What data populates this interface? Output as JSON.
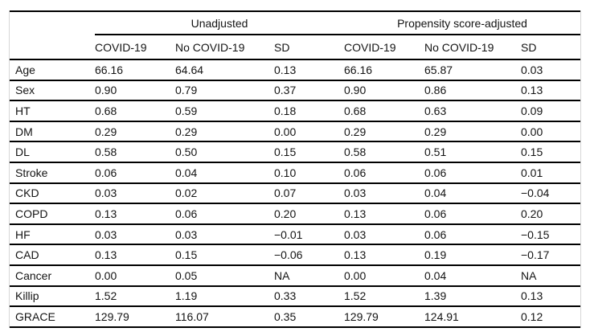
{
  "table": {
    "groups": [
      {
        "label": "Unadjusted"
      },
      {
        "label": "Propensity score-adjusted"
      }
    ],
    "columns": [
      "COVID-19",
      "No COVID-19",
      "SD",
      "COVID-19",
      "No COVID-19",
      "SD"
    ],
    "rows": [
      {
        "label": "Age",
        "values": [
          "66.16",
          "64.64",
          "0.13",
          "66.16",
          "65.87",
          "0.03"
        ]
      },
      {
        "label": "Sex",
        "values": [
          "0.90",
          "0.79",
          "0.37",
          "0.90",
          "0.86",
          "0.13"
        ]
      },
      {
        "label": "HT",
        "values": [
          "0.68",
          "0.59",
          "0.18",
          "0.68",
          "0.63",
          "0.09"
        ]
      },
      {
        "label": "DM",
        "values": [
          "0.29",
          "0.29",
          "0.00",
          "0.29",
          "0.29",
          "0.00"
        ]
      },
      {
        "label": "DL",
        "values": [
          "0.58",
          "0.50",
          "0.15",
          "0.58",
          "0.51",
          "0.15"
        ]
      },
      {
        "label": "Stroke",
        "values": [
          "0.06",
          "0.04",
          "0.10",
          "0.06",
          "0.06",
          "0.01"
        ]
      },
      {
        "label": "CKD",
        "values": [
          "0.03",
          "0.02",
          "0.07",
          "0.03",
          "0.04",
          "−0.04"
        ]
      },
      {
        "label": "COPD",
        "values": [
          "0.13",
          "0.06",
          "0.20",
          "0.13",
          "0.06",
          "0.20"
        ]
      },
      {
        "label": "HF",
        "values": [
          "0.03",
          "0.03",
          "−0.01",
          "0.03",
          "0.06",
          "−0.15"
        ]
      },
      {
        "label": "CAD",
        "values": [
          "0.13",
          "0.15",
          "−0.06",
          "0.13",
          "0.19",
          "−0.17"
        ]
      },
      {
        "label": "Cancer",
        "values": [
          "0.00",
          "0.05",
          "NA",
          "0.00",
          "0.04",
          "NA"
        ]
      },
      {
        "label": "Killip",
        "values": [
          "1.52",
          "1.19",
          "0.33",
          "1.52",
          "1.39",
          "0.13"
        ]
      },
      {
        "label": "GRACE",
        "values": [
          "129.79",
          "116.07",
          "0.35",
          "129.79",
          "124.91",
          "0.12"
        ]
      }
    ]
  },
  "colors": {
    "rule": "#000000",
    "frame_border": "#d6d6d6",
    "text": "#141414",
    "background": "#ffffff"
  }
}
